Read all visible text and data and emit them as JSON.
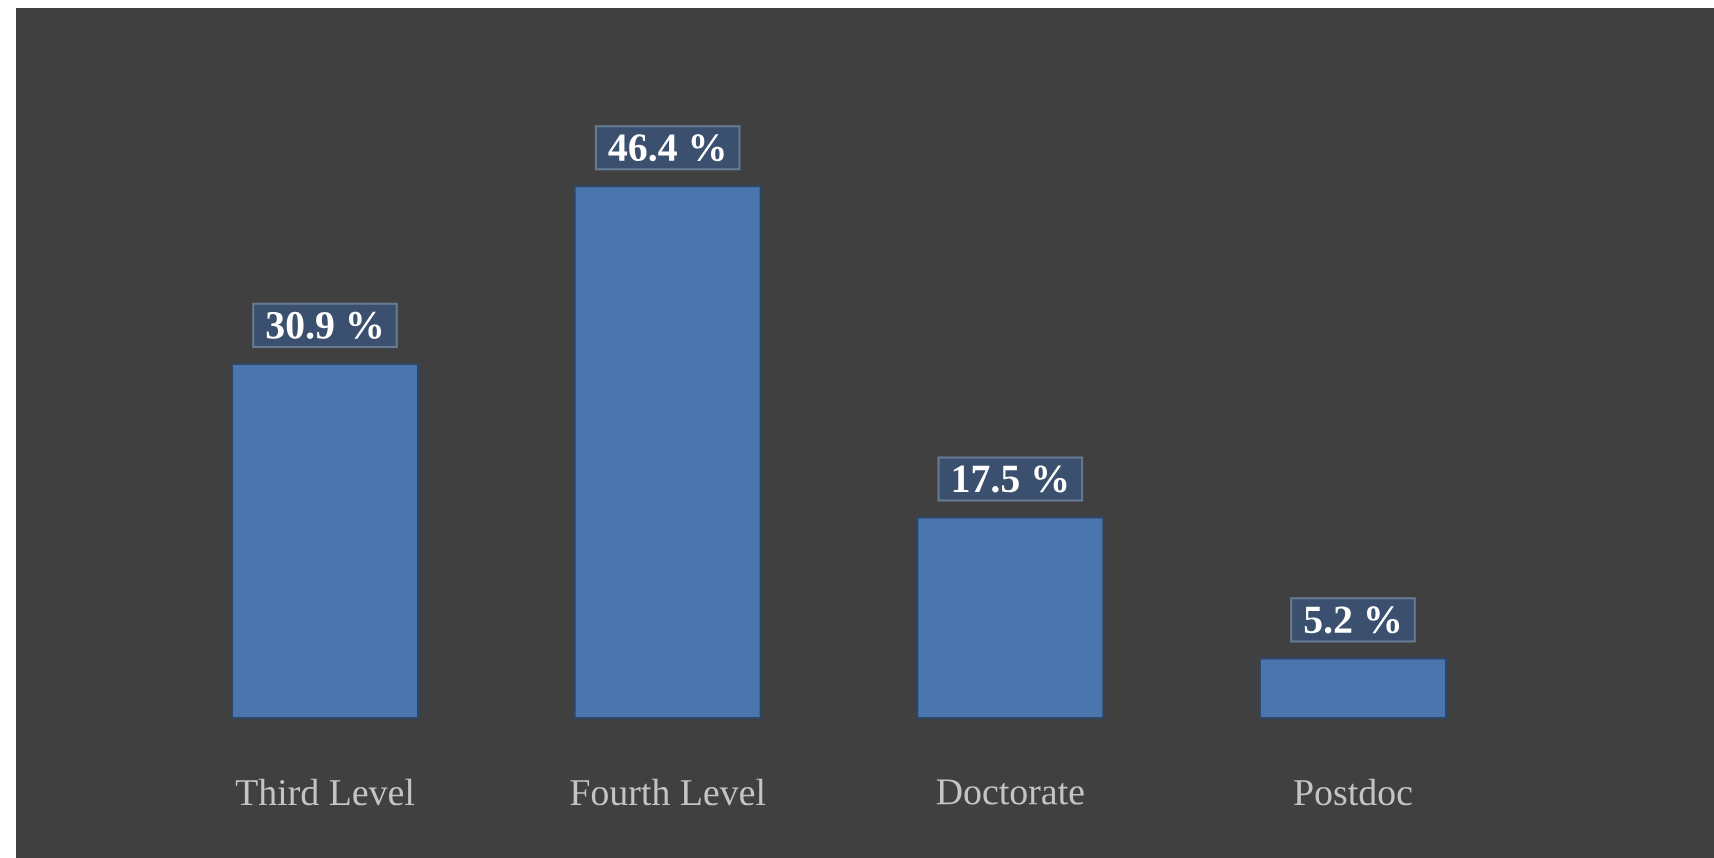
{
  "chart_data": {
    "type": "bar",
    "categories": [
      "Third Level",
      "Fourth Level",
      "Doctorate",
      "Postdoc"
    ],
    "values": [
      30.9,
      46.4,
      17.5,
      5.2
    ],
    "value_labels": [
      "30.9 %",
      "46.4 %",
      "17.5 %",
      "5.2 %"
    ],
    "color": "#4a76ad",
    "tick_labels": "x"
  }
}
